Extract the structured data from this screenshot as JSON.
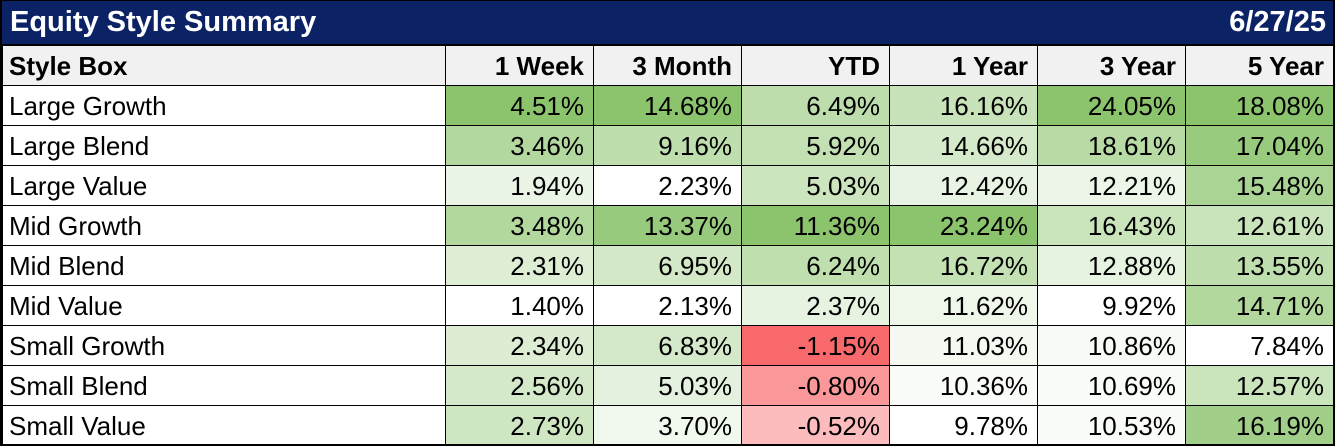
{
  "title_bar": {
    "title": "Equity Style Summary",
    "date": "6/27/25"
  },
  "colors": {
    "navy_header": "#0B2265",
    "title_text": "#FFFFFF",
    "column_header_bg": "#F1F1F1",
    "border": "#000000",
    "cell_text": "#000000",
    "heatmap_green_max": "#8CC46E",
    "heatmap_red_max": "#F8696B",
    "heatmap_neutral": "#FFFFFF"
  },
  "table": {
    "columns": [
      "Style Box",
      "1 Week",
      "3 Month",
      "YTD",
      "1 Year",
      "3 Year",
      "5 Year"
    ],
    "rows": [
      {
        "label": "Large Growth",
        "cells": [
          {
            "text": "4.51%",
            "bg": "#8CC46E"
          },
          {
            "text": "14.68%",
            "bg": "#8CC46E"
          },
          {
            "text": "6.49%",
            "bg": "#BDDDAC"
          },
          {
            "text": "16.16%",
            "bg": "#C8E3BA"
          },
          {
            "text": "24.05%",
            "bg": "#8CC46E"
          },
          {
            "text": "18.08%",
            "bg": "#8CC46E"
          }
        ]
      },
      {
        "label": "Large Blend",
        "cells": [
          {
            "text": "3.46%",
            "bg": "#B3D89F"
          },
          {
            "text": "9.16%",
            "bg": "#BFDEAE"
          },
          {
            "text": "5.92%",
            "bg": "#C3E0B3"
          },
          {
            "text": "14.66%",
            "bg": "#D5EACA"
          },
          {
            "text": "18.61%",
            "bg": "#B8DBA6"
          },
          {
            "text": "17.04%",
            "bg": "#98CB7D"
          }
        ]
      },
      {
        "label": "Large Value",
        "cells": [
          {
            "text": "1.94%",
            "bg": "#EBF5E6"
          },
          {
            "text": "2.23%",
            "bg": "#FEFEFE"
          },
          {
            "text": "5.03%",
            "bg": "#CCE5BF"
          },
          {
            "text": "12.42%",
            "bg": "#E8F3E3"
          },
          {
            "text": "12.21%",
            "bg": "#ECF5E8"
          },
          {
            "text": "15.48%",
            "bg": "#A9D493"
          }
        ]
      },
      {
        "label": "Mid Growth",
        "cells": [
          {
            "text": "3.48%",
            "bg": "#B2D89E"
          },
          {
            "text": "13.37%",
            "bg": "#98CA7D"
          },
          {
            "text": "11.36%",
            "bg": "#8CC46E"
          },
          {
            "text": "23.24%",
            "bg": "#8CC46E"
          },
          {
            "text": "16.43%",
            "bg": "#CAE4BC"
          },
          {
            "text": "12.61%",
            "bg": "#C9E4BB"
          }
        ]
      },
      {
        "label": "Mid Blend",
        "cells": [
          {
            "text": "2.31%",
            "bg": "#DDEED5"
          },
          {
            "text": "6.95%",
            "bg": "#D3E8C7"
          },
          {
            "text": "6.24%",
            "bg": "#C0DFAF"
          },
          {
            "text": "16.72%",
            "bg": "#C4E1B4"
          },
          {
            "text": "12.88%",
            "bg": "#E7F3E1"
          },
          {
            "text": "13.55%",
            "bg": "#BFDEAE"
          }
        ]
      },
      {
        "label": "Mid Value",
        "cells": [
          {
            "text": "1.40%",
            "bg": "#FFFFFF"
          },
          {
            "text": "2.13%",
            "bg": "#FFFFFF"
          },
          {
            "text": "2.37%",
            "bg": "#E7F3E1"
          },
          {
            "text": "11.62%",
            "bg": "#EFF7EB"
          },
          {
            "text": "9.92%",
            "bg": "#FFFFFF"
          },
          {
            "text": "14.71%",
            "bg": "#B2D89E"
          }
        ]
      },
      {
        "label": "Small Growth",
        "cells": [
          {
            "text": "2.34%",
            "bg": "#DCEDD3"
          },
          {
            "text": "6.83%",
            "bg": "#D4E9C9"
          },
          {
            "text": "-1.15%",
            "bg": "#F8696B"
          },
          {
            "text": "11.03%",
            "bg": "#F4FAF2"
          },
          {
            "text": "10.86%",
            "bg": "#F7FBF5"
          },
          {
            "text": "7.84%",
            "bg": "#FFFFFF"
          }
        ]
      },
      {
        "label": "Small Blend",
        "cells": [
          {
            "text": "2.56%",
            "bg": "#D4E9C9"
          },
          {
            "text": "5.03%",
            "bg": "#E4F1DE"
          },
          {
            "text": "-0.80%",
            "bg": "#FA9798"
          },
          {
            "text": "10.36%",
            "bg": "#FAFCF9"
          },
          {
            "text": "10.69%",
            "bg": "#F9FCF7"
          },
          {
            "text": "12.57%",
            "bg": "#CAE4BC"
          }
        ]
      },
      {
        "label": "Small Value",
        "cells": [
          {
            "text": "2.73%",
            "bg": "#CEE6C1"
          },
          {
            "text": "3.70%",
            "bg": "#F1F8ED"
          },
          {
            "text": "-0.52%",
            "bg": "#FCBBBC"
          },
          {
            "text": "9.78%",
            "bg": "#FFFFFF"
          },
          {
            "text": "10.53%",
            "bg": "#FAFCF9"
          },
          {
            "text": "16.19%",
            "bg": "#A1CF89"
          }
        ]
      }
    ]
  },
  "chart_data": {
    "type": "table",
    "title": "Equity Style Summary",
    "date": "6/27/25",
    "units": "%",
    "row_label_header": "Style Box",
    "row_labels": [
      "Large Growth",
      "Large Blend",
      "Large Value",
      "Mid Growth",
      "Mid Blend",
      "Mid Value",
      "Small Growth",
      "Small Blend",
      "Small Value"
    ],
    "categories": [
      "1 Week",
      "3 Month",
      "YTD",
      "1 Year",
      "3 Year",
      "5 Year"
    ],
    "series": [
      {
        "name": "1 Week",
        "values": [
          4.51,
          3.46,
          1.94,
          3.48,
          2.31,
          1.4,
          2.34,
          2.56,
          2.73
        ]
      },
      {
        "name": "3 Month",
        "values": [
          14.68,
          9.16,
          2.23,
          13.37,
          6.95,
          2.13,
          6.83,
          5.03,
          3.7
        ]
      },
      {
        "name": "YTD",
        "values": [
          6.49,
          5.92,
          5.03,
          11.36,
          6.24,
          2.37,
          -1.15,
          -0.8,
          -0.52
        ]
      },
      {
        "name": "1 Year",
        "values": [
          16.16,
          14.66,
          12.42,
          23.24,
          16.72,
          11.62,
          11.03,
          10.36,
          9.78
        ]
      },
      {
        "name": "3 Year",
        "values": [
          24.05,
          18.61,
          12.21,
          16.43,
          12.88,
          9.92,
          10.86,
          10.69,
          10.53
        ]
      },
      {
        "name": "5 Year",
        "values": [
          18.08,
          17.04,
          15.48,
          12.61,
          13.55,
          14.71,
          7.84,
          12.57,
          16.19
        ]
      }
    ],
    "layout_hints": {
      "heatmap": "red-white-green conditional formatting scaled per column; negatives red, column max full green",
      "header_row_bg": "#F1F1F1",
      "title_bar_bg": "#0B2265"
    }
  }
}
